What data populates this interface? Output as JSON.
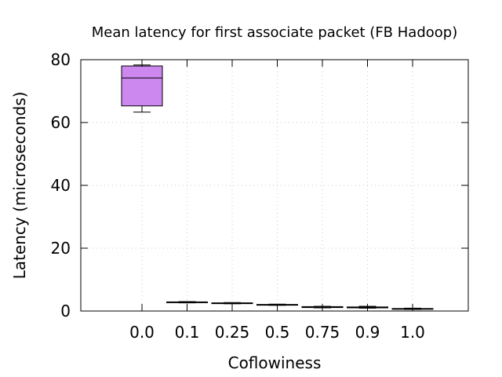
{
  "chart_data": {
    "type": "box",
    "title": "Mean latency for first associate packet (FB Hadoop)",
    "xlabel": "Coflowiness",
    "ylabel": "Latency (microseconds)",
    "categories": [
      "0.0",
      "0.1",
      "0.25",
      "0.5",
      "0.75",
      "0.9",
      "1.0"
    ],
    "ylim": [
      0,
      80
    ],
    "yticks": [
      0,
      20,
      40,
      60,
      80
    ],
    "grid": true,
    "legend": "none",
    "boxes": [
      {
        "category": "0.0",
        "min": 63.3,
        "q1": 65.3,
        "median": 74.2,
        "q3": 78.0,
        "max": 78.3
      },
      {
        "category": "0.1",
        "min": 2.6,
        "q1": 2.7,
        "median": 2.8,
        "q3": 2.9,
        "max": 3.0
      },
      {
        "category": "0.25",
        "min": 2.3,
        "q1": 2.4,
        "median": 2.5,
        "q3": 2.6,
        "max": 2.7
      },
      {
        "category": "0.5",
        "min": 1.8,
        "q1": 1.9,
        "median": 2.0,
        "q3": 2.1,
        "max": 2.2
      },
      {
        "category": "0.75",
        "min": 1.0,
        "q1": 1.1,
        "median": 1.3,
        "q3": 1.4,
        "max": 1.5
      },
      {
        "category": "0.9",
        "min": 0.9,
        "q1": 1.0,
        "median": 1.2,
        "q3": 1.3,
        "max": 1.5
      },
      {
        "category": "1.0",
        "min": 0.5,
        "q1": 0.6,
        "median": 0.7,
        "q3": 0.8,
        "max": 0.9
      }
    ],
    "colors": {
      "box_fill": "#cc88ee",
      "line": "#000000",
      "grid": "#c8c8c8",
      "background": "#ffffff"
    }
  }
}
